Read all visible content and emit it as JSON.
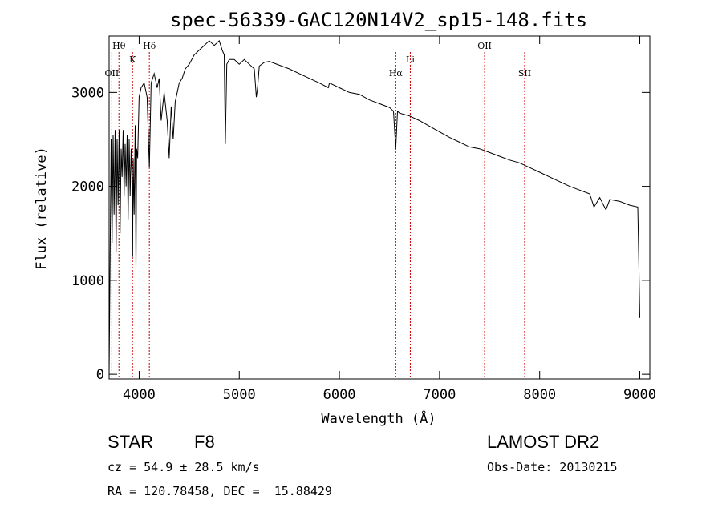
{
  "chart_data": {
    "type": "line",
    "title": "spec-56339-GAC120N14V2_sp15-148.fits",
    "xlabel": "Wavelength (Å)",
    "ylabel": "Flux (relative)",
    "xlim": [
      3700,
      9100
    ],
    "ylim": [
      -50,
      3600
    ],
    "xticks": [
      4000,
      5000,
      6000,
      7000,
      8000,
      9000
    ],
    "yticks": [
      0,
      1000,
      2000,
      3000
    ],
    "grid": false,
    "line_color": "#000000",
    "marker_color": "#cc0000",
    "series": [
      {
        "x": [
          3700,
          3710,
          3720,
          3730,
          3740,
          3750,
          3760,
          3770,
          3780,
          3790,
          3800,
          3810,
          3820,
          3830,
          3840,
          3850,
          3860,
          3870,
          3880,
          3890,
          3900,
          3910,
          3920,
          3930,
          3935,
          3940,
          3950,
          3960,
          3968,
          3975,
          3985,
          4000,
          4020,
          4050,
          4080,
          4102,
          4120,
          4150,
          4180,
          4200,
          4220,
          4250,
          4280,
          4300,
          4320,
          4340,
          4360,
          4380,
          4400,
          4430,
          4460,
          4500,
          4550,
          4600,
          4650,
          4700,
          4750,
          4800,
          4830,
          4850,
          4861,
          4875,
          4900,
          4950,
          5000,
          5050,
          5100,
          5150,
          5170,
          5183,
          5200,
          5250,
          5300,
          5400,
          5500,
          5600,
          5700,
          5800,
          5890,
          5900,
          6000,
          6100,
          6200,
          6300,
          6400,
          6500,
          6540,
          6563,
          6580,
          6600,
          6700,
          6800,
          6900,
          7000,
          7100,
          7200,
          7300,
          7400,
          7500,
          7600,
          7700,
          7800,
          7900,
          8000,
          8100,
          8200,
          8300,
          8400,
          8500,
          8542,
          8600,
          8662,
          8700,
          8800,
          8900,
          8980,
          8990,
          9000
        ],
        "values": [
          0,
          1200,
          2500,
          1400,
          2550,
          1700,
          2600,
          1300,
          2500,
          1800,
          2600,
          1500,
          2400,
          2100,
          2600,
          1900,
          2450,
          2000,
          2550,
          1650,
          2500,
          1900,
          2400,
          2050,
          1250,
          2300,
          1700,
          2650,
          1100,
          2400,
          2300,
          2950,
          3050,
          3100,
          2950,
          2200,
          3100,
          3200,
          3050,
          3150,
          2700,
          3000,
          2700,
          2300,
          2850,
          2500,
          2900,
          3000,
          3100,
          3150,
          3250,
          3300,
          3400,
          3450,
          3500,
          3550,
          3500,
          3550,
          3450,
          3400,
          2450,
          3300,
          3350,
          3350,
          3300,
          3350,
          3300,
          3250,
          2950,
          3050,
          3280,
          3320,
          3330,
          3290,
          3250,
          3200,
          3150,
          3100,
          3050,
          3100,
          3050,
          3000,
          2980,
          2920,
          2880,
          2840,
          2800,
          2400,
          2800,
          2780,
          2750,
          2700,
          2640,
          2580,
          2520,
          2470,
          2420,
          2400,
          2360,
          2320,
          2280,
          2250,
          2200,
          2150,
          2100,
          2050,
          2000,
          1960,
          1920,
          1780,
          1880,
          1750,
          1860,
          1840,
          1800,
          1780,
          1200,
          600
        ]
      }
    ],
    "line_markers": [
      {
        "label": "Hθ",
        "x": 3798
      },
      {
        "label": "OII",
        "x": 3727
      },
      {
        "label": "K",
        "x": 3934
      },
      {
        "label": "Hδ",
        "x": 4102
      },
      {
        "label": "Hα",
        "x": 6563
      },
      {
        "label": "Li",
        "x": 6708
      },
      {
        "label": "OII",
        "x": 7450
      },
      {
        "label": "SII",
        "x": 7850
      }
    ]
  },
  "info": {
    "object_class": "STAR",
    "subclass": "F8",
    "survey": "LAMOST DR2",
    "redshift_line": "cz = 54.9 ± 28.5 km/s",
    "obs_date": "Obs-Date: 20130215",
    "coords": "RA = 120.78458, DEC =  15.88429"
  }
}
